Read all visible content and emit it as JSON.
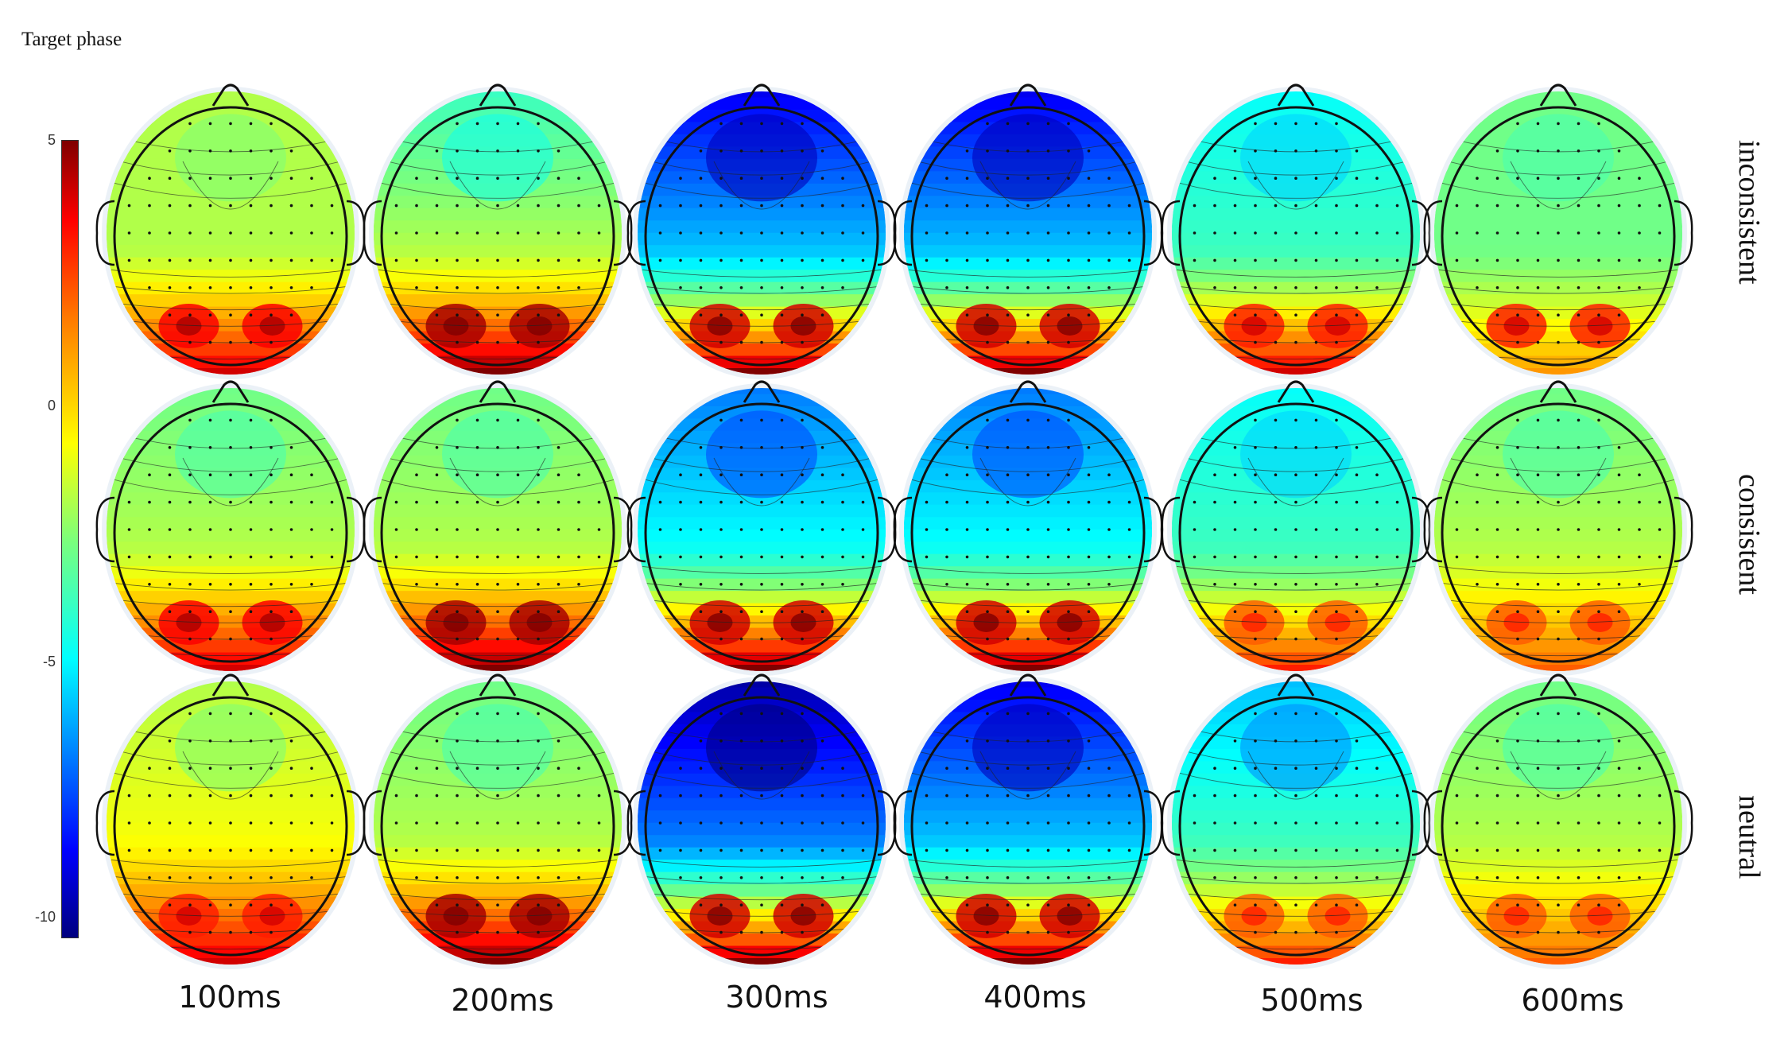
{
  "figure": {
    "title": "Target phase",
    "colorbar": {
      "ticks": [
        "5",
        "0",
        "-5",
        "-10"
      ],
      "values": [
        5,
        0,
        -5,
        -10
      ],
      "range": [
        -10.5,
        5
      ],
      "colormap": "jet"
    },
    "time_labels": [
      "100ms",
      "200ms",
      "300ms",
      "400ms",
      "500ms",
      "600ms"
    ],
    "condition_labels": [
      "inconsistent",
      "consistent",
      "neutral"
    ],
    "maps": [
      [
        {
          "frontal": -2,
          "central": -2,
          "posterior": 4,
          "poles": 3.5
        },
        {
          "frontal": -4,
          "central": -2,
          "posterior": 5,
          "poles": 4.5
        },
        {
          "frontal": -9,
          "central": -6,
          "posterior": 5,
          "poles": 4
        },
        {
          "frontal": -9,
          "central": -6,
          "posterior": 5,
          "poles": 4
        },
        {
          "frontal": -5,
          "central": -4,
          "posterior": 4,
          "poles": 3
        },
        {
          "frontal": -3,
          "central": -3,
          "posterior": 1,
          "poles": 3
        }
      ],
      [
        {
          "frontal": -3,
          "central": -2,
          "posterior": 4,
          "poles": 3.5
        },
        {
          "frontal": -3,
          "central": -2,
          "posterior": 5,
          "poles": 4.5
        },
        {
          "frontal": -7,
          "central": -5,
          "posterior": 5,
          "poles": 4
        },
        {
          "frontal": -7,
          "central": -5,
          "posterior": 5,
          "poles": 4
        },
        {
          "frontal": -5,
          "central": -4,
          "posterior": 3,
          "poles": 2
        },
        {
          "frontal": -3,
          "central": -2,
          "posterior": 2,
          "poles": 2
        }
      ],
      [
        {
          "frontal": -2,
          "central": -1,
          "posterior": 4,
          "poles": 3
        },
        {
          "frontal": -3,
          "central": -2,
          "posterior": 5,
          "poles": 4.5
        },
        {
          "frontal": -10,
          "central": -7,
          "posterior": 5,
          "poles": 4
        },
        {
          "frontal": -9,
          "central": -6,
          "posterior": 5,
          "poles": 4
        },
        {
          "frontal": -6,
          "central": -4,
          "posterior": 3,
          "poles": 2
        },
        {
          "frontal": -3,
          "central": -2,
          "posterior": 2,
          "poles": 2
        }
      ]
    ]
  }
}
